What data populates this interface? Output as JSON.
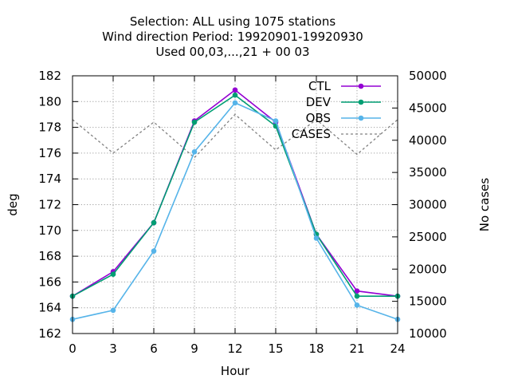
{
  "chart_data": {
    "type": "line",
    "title": [
      "Selection: ALL using  1075 stations",
      "Wind direction   Period: 19920901-19920930",
      "Used  00,03,...,21  + 00 03"
    ],
    "xlabel": "Hour",
    "ylabel": "deg",
    "y2label": "No cases",
    "x": [
      0,
      3,
      6,
      9,
      12,
      15,
      18,
      21,
      24
    ],
    "xlim": [
      0,
      24
    ],
    "ylim": [
      162,
      182
    ],
    "y2lim": [
      10000,
      50000
    ],
    "xticks": [
      "0",
      "3",
      "6",
      "9",
      "12",
      "15",
      "18",
      "21",
      "24"
    ],
    "yticks": [
      "162",
      "164",
      "166",
      "168",
      "170",
      "172",
      "174",
      "176",
      "178",
      "180",
      "182"
    ],
    "y2ticks": [
      "10000",
      "15000",
      "20000",
      "25000",
      "30000",
      "35000",
      "40000",
      "45000",
      "50000"
    ],
    "grid": true,
    "legend_position": "top-right",
    "series": [
      {
        "name": "CTL",
        "axis": "left",
        "color": "#9400d3",
        "style": "solid",
        "marker": true,
        "values": [
          164.9,
          166.8,
          170.6,
          178.5,
          180.9,
          178.4,
          169.7,
          165.3,
          164.9
        ]
      },
      {
        "name": "DEV",
        "axis": "left",
        "color": "#009e73",
        "style": "solid",
        "marker": true,
        "values": [
          164.9,
          166.6,
          170.6,
          178.4,
          180.5,
          178.1,
          169.7,
          164.9,
          164.9
        ]
      },
      {
        "name": "OBS",
        "axis": "left",
        "color": "#56b4e9",
        "style": "solid",
        "marker": true,
        "values": [
          163.1,
          163.8,
          168.4,
          176.1,
          179.9,
          178.5,
          169.4,
          164.2,
          163.1
        ]
      },
      {
        "name": "CASES",
        "axis": "right",
        "color": "#808080",
        "style": "dashed",
        "marker": false,
        "values": [
          43200,
          38000,
          42800,
          37300,
          44000,
          38500,
          43200,
          37800,
          43200
        ]
      }
    ]
  }
}
